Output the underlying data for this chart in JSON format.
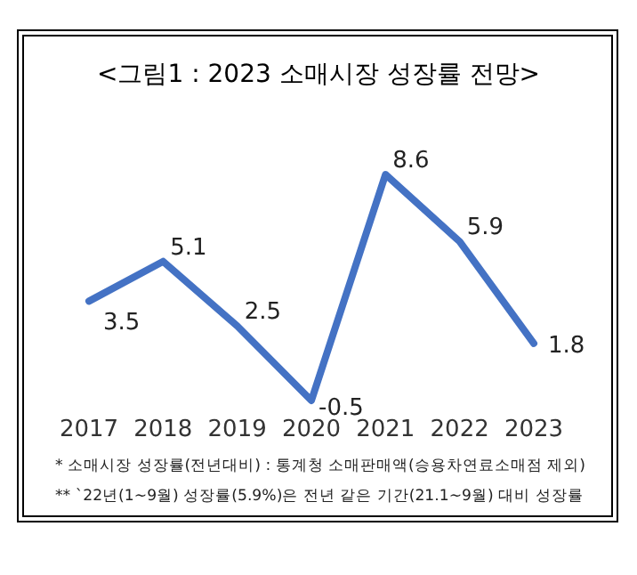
{
  "chart_data": {
    "type": "line",
    "title": "<그림1 : 2023 소매시장 성장률 전망>",
    "categories": [
      "2017",
      "2018",
      "2019",
      "2020",
      "2021",
      "2022",
      "2023"
    ],
    "series": [
      {
        "color": "#4472c4",
        "values": [
          3.5,
          5.1,
          2.5,
          -0.5,
          8.6,
          5.9,
          1.8
        ]
      }
    ],
    "data_labels": true,
    "marker": "none",
    "line_style": "solid",
    "annotations": [
      "* 소매시장 성장률(전년대비) : 통계청 소매판매액(승용차연료소매점 제외)",
      "** `22년(1~9월) 성장률(5.9%)은 전년 같은 기간(21.1~9월) 대비 성장률"
    ]
  }
}
